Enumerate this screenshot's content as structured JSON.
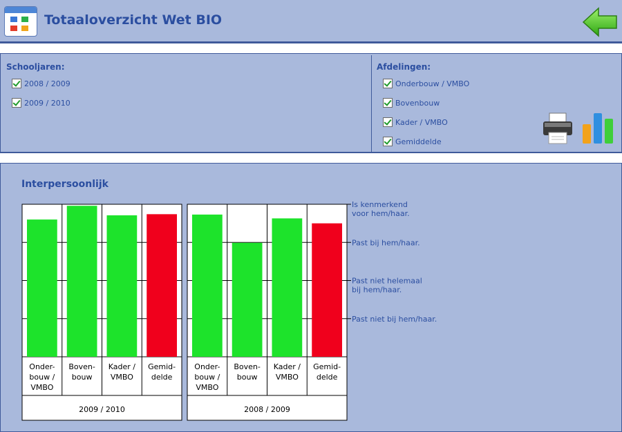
{
  "header": {
    "title": "Totaaloverzicht Wet BIO",
    "back_icon": "green-left-arrow-icon"
  },
  "filters": {
    "schooljaren": {
      "heading": "Schooljaren:",
      "items": [
        {
          "label": "2008 / 2009",
          "checked": true
        },
        {
          "label": "2009 / 2010",
          "checked": true
        }
      ]
    },
    "afdelingen": {
      "heading": "Afdelingen:",
      "items": [
        {
          "label": "Onderbouw / VMBO",
          "checked": true
        },
        {
          "label": "Bovenbouw",
          "checked": true
        },
        {
          "label": "Kader / VMBO",
          "checked": true
        },
        {
          "label": "Gemiddelde",
          "checked": true
        }
      ]
    },
    "tools": [
      "printer-icon",
      "bar-chart-icon"
    ]
  },
  "section": {
    "title": "Interpersoonlijk"
  },
  "chart_data": {
    "type": "bar",
    "scale_labels": [
      [
        "Is kenmerkend",
        "voor hem/haar."
      ],
      [
        "Past bij hem/haar."
      ],
      [
        "Past niet helemaal",
        "bij hem/haar."
      ],
      [
        "Past niet bij hem/haar."
      ]
    ],
    "ylim": [
      1,
      4
    ],
    "groups": [
      {
        "year": "2009 / 2010",
        "categories": [
          [
            "Onder-",
            "bouw /",
            "VMBO"
          ],
          [
            "Boven-",
            "bouw"
          ],
          [
            "Kader /",
            "VMBO"
          ],
          [
            "Gemid-",
            "delde"
          ]
        ],
        "values": [
          3.6,
          3.96,
          3.71,
          3.74
        ],
        "colors": [
          "#1de32b",
          "#1de32b",
          "#1de32b",
          "#f0001c"
        ]
      },
      {
        "year": "2008 / 2009",
        "categories": [
          [
            "Onder-",
            "bouw /",
            "VMBO"
          ],
          [
            "Boven-",
            "bouw"
          ],
          [
            "Kader /",
            "VMBO"
          ],
          [
            "Gemid-",
            "delde"
          ]
        ],
        "values": [
          3.73,
          2.99,
          3.63,
          3.5
        ],
        "colors": [
          "#1de32b",
          "#1de32b",
          "#1de32b",
          "#f0001c"
        ]
      }
    ]
  }
}
